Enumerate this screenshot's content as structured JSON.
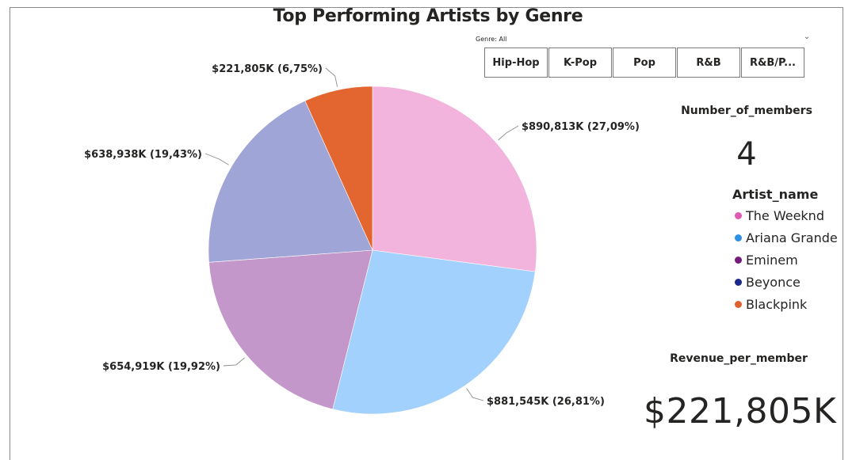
{
  "report": {
    "title": "Top Performing Artists by Genre"
  },
  "slicer": {
    "caption": "Genre: All",
    "buttons": [
      "Hip-Hop",
      "K-Pop",
      "Pop",
      "R&B",
      "R&B/P..."
    ]
  },
  "cards": {
    "members": {
      "label": "Number_of_members",
      "value": "4"
    },
    "revenue": {
      "label": "Revenue_per_member",
      "value": "$221,805K"
    }
  },
  "legend": {
    "title": "Artist_name",
    "items": [
      {
        "name": "The Weeknd",
        "color": "#e05ab4"
      },
      {
        "name": "Ariana Grande",
        "color": "#2e8fe6"
      },
      {
        "name": "Eminem",
        "color": "#741b7c"
      },
      {
        "name": "Beyonce",
        "color": "#1b2a8a"
      },
      {
        "name": "Blackpink",
        "color": "#e06030"
      }
    ]
  },
  "chart_data": {
    "type": "pie",
    "title": "Top Performing Artists by Genre",
    "slices": [
      {
        "value": 890813,
        "percent": 27.09,
        "label": "$890,813K (27,09%)",
        "color": "#f2b3dd"
      },
      {
        "value": 881545,
        "percent": 26.81,
        "label": "$881,545K (26,81%)",
        "color": "#a3d1fd"
      },
      {
        "value": 654919,
        "percent": 19.92,
        "label": "$654,919K (19,92%)",
        "color": "#c497ca"
      },
      {
        "value": 638938,
        "percent": 19.43,
        "label": "$638,938K (19,43%)",
        "color": "#a0a5d7"
      },
      {
        "value": 221805,
        "percent": 6.75,
        "label": "$221,805K (6,75%)",
        "color": "#e3652f"
      }
    ],
    "unit": "K"
  }
}
